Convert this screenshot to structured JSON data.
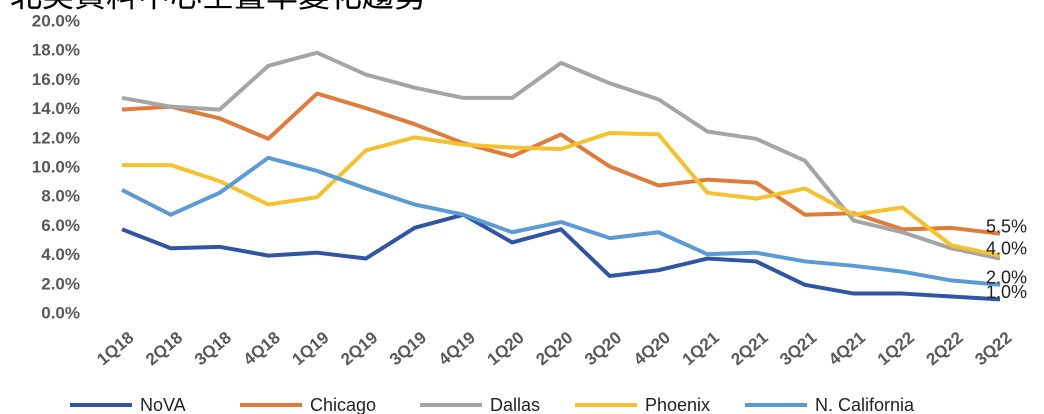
{
  "chart_data": {
    "type": "line",
    "title": "北美資料中心空置率變化趨勢",
    "categories": [
      "1Q18",
      "2Q18",
      "3Q18",
      "4Q18",
      "1Q19",
      "2Q19",
      "3Q19",
      "4Q19",
      "1Q20",
      "2Q20",
      "3Q20",
      "4Q20",
      "1Q21",
      "2Q21",
      "3Q21",
      "4Q21",
      "1Q22",
      "2Q22",
      "3Q22"
    ],
    "ylim": [
      0,
      20
    ],
    "yticks": [
      {
        "value": 0,
        "label": "0.0%"
      },
      {
        "value": 2,
        "label": "2.0%"
      },
      {
        "value": 4,
        "label": "4.0%"
      },
      {
        "value": 6,
        "label": "6.0%"
      },
      {
        "value": 8,
        "label": "8.0%"
      },
      {
        "value": 10,
        "label": "10.0%"
      },
      {
        "value": 12,
        "label": "12.0%"
      },
      {
        "value": 14,
        "label": "14.0%"
      },
      {
        "value": 16,
        "label": "16.0%"
      },
      {
        "value": 18,
        "label": "18.0%"
      },
      {
        "value": 20,
        "label": "20.0%"
      }
    ],
    "grid": false,
    "legend": "bottom",
    "series": [
      {
        "name": "NoVA",
        "color": "#2f55a4",
        "values": [
          5.8,
          4.5,
          4.6,
          4.0,
          4.2,
          3.8,
          5.9,
          6.8,
          4.9,
          5.8,
          2.6,
          3.0,
          3.8,
          3.6,
          2.0,
          1.4,
          1.4,
          1.2,
          1.0
        ],
        "value_labels": [
          null,
          null,
          null,
          null,
          null,
          null,
          null,
          null,
          null,
          null,
          null,
          null,
          null,
          null,
          null,
          null,
          null,
          null,
          "1.0%"
        ]
      },
      {
        "name": "Chicago",
        "color": "#e07b39",
        "values": [
          14.0,
          14.2,
          13.4,
          12.0,
          15.1,
          14.1,
          13.0,
          11.7,
          10.8,
          12.3,
          10.1,
          8.8,
          9.2,
          9.0,
          6.8,
          6.9,
          5.8,
          5.9,
          5.5
        ],
        "value_labels": [
          null,
          null,
          null,
          null,
          null,
          null,
          null,
          null,
          null,
          null,
          null,
          null,
          null,
          null,
          null,
          null,
          null,
          null,
          "5.5%"
        ]
      },
      {
        "name": "Dallas",
        "color": "#a5a5a5",
        "values": [
          14.8,
          14.2,
          14.0,
          17.0,
          17.9,
          16.4,
          15.5,
          14.8,
          14.8,
          17.2,
          15.8,
          14.7,
          12.5,
          12.0,
          10.5,
          6.4,
          5.6,
          4.5,
          3.8
        ]
      },
      {
        "name": "Phoenix",
        "color": "#f5c12e",
        "values": [
          10.2,
          10.2,
          9.1,
          7.5,
          8.0,
          11.2,
          12.1,
          11.6,
          11.4,
          11.3,
          12.4,
          12.3,
          8.3,
          7.9,
          8.6,
          6.8,
          7.3,
          4.7,
          4.0
        ],
        "value_labels": [
          null,
          null,
          null,
          null,
          null,
          null,
          null,
          null,
          null,
          null,
          null,
          null,
          null,
          null,
          null,
          null,
          null,
          null,
          "4.0%"
        ]
      },
      {
        "name": "N. California",
        "color": "#5b9bd5",
        "values": [
          8.5,
          6.8,
          8.3,
          10.7,
          9.8,
          8.6,
          7.5,
          6.8,
          5.6,
          6.3,
          5.2,
          5.6,
          4.1,
          4.2,
          3.6,
          3.3,
          2.9,
          2.3,
          2.0
        ],
        "value_labels": [
          null,
          null,
          null,
          null,
          null,
          null,
          null,
          null,
          null,
          null,
          null,
          null,
          null,
          null,
          null,
          null,
          null,
          null,
          "2.0%"
        ]
      }
    ]
  }
}
